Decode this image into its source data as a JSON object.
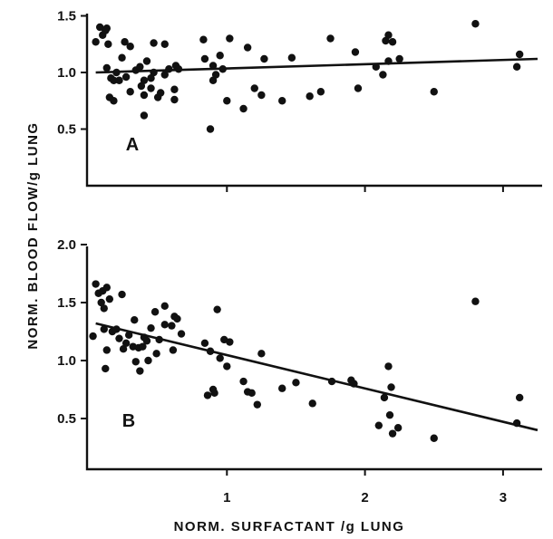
{
  "chart_data": {
    "x_axis_title": "NORM. SURFACTANT /g LUNG",
    "y_axis_title": "NORM. BLOOD FLOW/g LUNG",
    "panels": [
      {
        "type": "scatter",
        "label": "A",
        "xlim": [
          0,
          3.3
        ],
        "ylim": [
          0,
          1.6
        ],
        "y_ticks": [
          {
            "value": 0.5,
            "label": "0.5"
          },
          {
            "value": 1.0,
            "label": "1.0"
          },
          {
            "value": 1.5,
            "label": "1.5"
          }
        ],
        "fit_line": {
          "x": [
            0.05,
            3.25
          ],
          "y": [
            1.0,
            1.12
          ]
        },
        "points": [
          [
            0.05,
            1.27
          ],
          [
            0.08,
            1.4
          ],
          [
            0.1,
            1.33
          ],
          [
            0.12,
            1.37
          ],
          [
            0.13,
            1.39
          ],
          [
            0.14,
            1.25
          ],
          [
            0.13,
            1.04
          ],
          [
            0.16,
            0.95
          ],
          [
            0.18,
            0.93
          ],
          [
            0.2,
            1.0
          ],
          [
            0.22,
            0.93
          ],
          [
            0.15,
            0.78
          ],
          [
            0.18,
            0.75
          ],
          [
            0.24,
            1.13
          ],
          [
            0.26,
            1.27
          ],
          [
            0.27,
            0.96
          ],
          [
            0.3,
            1.23
          ],
          [
            0.3,
            0.83
          ],
          [
            0.34,
            1.02
          ],
          [
            0.37,
            1.05
          ],
          [
            0.38,
            0.88
          ],
          [
            0.4,
            0.93
          ],
          [
            0.4,
            0.8
          ],
          [
            0.4,
            0.62
          ],
          [
            0.42,
            1.1
          ],
          [
            0.45,
            0.86
          ],
          [
            0.45,
            0.95
          ],
          [
            0.47,
            1.0
          ],
          [
            0.47,
            1.26
          ],
          [
            0.5,
            0.78
          ],
          [
            0.52,
            0.82
          ],
          [
            0.55,
            1.25
          ],
          [
            0.55,
            0.98
          ],
          [
            0.58,
            1.03
          ],
          [
            0.62,
            0.85
          ],
          [
            0.62,
            0.76
          ],
          [
            0.63,
            1.06
          ],
          [
            0.65,
            1.03
          ],
          [
            0.83,
            1.29
          ],
          [
            0.84,
            1.12
          ],
          [
            0.88,
            0.5
          ],
          [
            0.9,
            1.06
          ],
          [
            0.9,
            0.93
          ],
          [
            0.92,
            0.98
          ],
          [
            0.95,
            1.15
          ],
          [
            0.97,
            1.03
          ],
          [
            1.0,
            0.75
          ],
          [
            1.02,
            1.3
          ],
          [
            1.12,
            0.68
          ],
          [
            1.15,
            1.22
          ],
          [
            1.2,
            0.86
          ],
          [
            1.25,
            0.8
          ],
          [
            1.27,
            1.12
          ],
          [
            1.4,
            0.75
          ],
          [
            1.47,
            1.13
          ],
          [
            1.6,
            0.79
          ],
          [
            1.68,
            0.83
          ],
          [
            1.75,
            1.3
          ],
          [
            1.93,
            1.18
          ],
          [
            1.95,
            0.86
          ],
          [
            2.08,
            1.05
          ],
          [
            2.13,
            0.98
          ],
          [
            2.15,
            1.28
          ],
          [
            2.17,
            1.1
          ],
          [
            2.17,
            1.33
          ],
          [
            2.2,
            1.27
          ],
          [
            2.25,
            1.12
          ],
          [
            2.5,
            0.83
          ],
          [
            2.8,
            1.43
          ],
          [
            3.1,
            1.05
          ],
          [
            3.12,
            1.16
          ]
        ]
      },
      {
        "type": "scatter",
        "label": "B",
        "xlim": [
          0,
          3.3
        ],
        "ylim": [
          0,
          2.1
        ],
        "y_ticks": [
          {
            "value": 0.5,
            "label": "0.5"
          },
          {
            "value": 1.0,
            "label": "1.0"
          },
          {
            "value": 1.5,
            "label": "1.5"
          },
          {
            "value": 2.0,
            "label": "2.0"
          }
        ],
        "x_ticks": [
          {
            "value": 1,
            "label": "1"
          },
          {
            "value": 2,
            "label": "2"
          },
          {
            "value": 3,
            "label": "3"
          }
        ],
        "fit_line": {
          "x": [
            0.05,
            3.25
          ],
          "y": [
            1.32,
            0.4
          ]
        },
        "points": [
          [
            0.03,
            1.21
          ],
          [
            0.05,
            1.66
          ],
          [
            0.07,
            1.58
          ],
          [
            0.09,
            1.5
          ],
          [
            0.1,
            1.6
          ],
          [
            0.11,
            1.45
          ],
          [
            0.13,
            1.63
          ],
          [
            0.11,
            1.27
          ],
          [
            0.12,
            0.93
          ],
          [
            0.13,
            1.09
          ],
          [
            0.15,
            1.53
          ],
          [
            0.17,
            1.25
          ],
          [
            0.2,
            1.27
          ],
          [
            0.22,
            1.19
          ],
          [
            0.24,
            1.57
          ],
          [
            0.25,
            1.1
          ],
          [
            0.27,
            1.15
          ],
          [
            0.29,
            1.22
          ],
          [
            0.32,
            1.12
          ],
          [
            0.33,
            1.35
          ],
          [
            0.34,
            0.99
          ],
          [
            0.36,
            1.11
          ],
          [
            0.37,
            0.91
          ],
          [
            0.39,
            1.12
          ],
          [
            0.4,
            1.2
          ],
          [
            0.42,
            1.17
          ],
          [
            0.43,
            1.0
          ],
          [
            0.45,
            1.28
          ],
          [
            0.48,
            1.42
          ],
          [
            0.49,
            1.06
          ],
          [
            0.51,
            1.18
          ],
          [
            0.55,
            1.31
          ],
          [
            0.55,
            1.47
          ],
          [
            0.6,
            1.3
          ],
          [
            0.61,
            1.09
          ],
          [
            0.62,
            1.38
          ],
          [
            0.64,
            1.36
          ],
          [
            0.67,
            1.23
          ],
          [
            0.84,
            1.15
          ],
          [
            0.86,
            0.7
          ],
          [
            0.88,
            1.08
          ],
          [
            0.9,
            0.75
          ],
          [
            0.91,
            0.72
          ],
          [
            0.93,
            1.44
          ],
          [
            0.95,
            1.02
          ],
          [
            0.98,
            1.18
          ],
          [
            1.0,
            0.95
          ],
          [
            1.02,
            1.16
          ],
          [
            1.12,
            0.82
          ],
          [
            1.15,
            0.73
          ],
          [
            1.18,
            0.72
          ],
          [
            1.22,
            0.62
          ],
          [
            1.25,
            1.06
          ],
          [
            1.4,
            0.76
          ],
          [
            1.5,
            0.81
          ],
          [
            1.62,
            0.63
          ],
          [
            1.76,
            0.82
          ],
          [
            1.9,
            0.83
          ],
          [
            1.92,
            0.8
          ],
          [
            2.1,
            0.44
          ],
          [
            2.14,
            0.68
          ],
          [
            2.17,
            0.95
          ],
          [
            2.18,
            0.53
          ],
          [
            2.19,
            0.77
          ],
          [
            2.2,
            0.37
          ],
          [
            2.24,
            0.42
          ],
          [
            2.5,
            0.33
          ],
          [
            2.8,
            1.51
          ],
          [
            3.1,
            0.46
          ],
          [
            3.12,
            0.68
          ]
        ]
      }
    ]
  }
}
